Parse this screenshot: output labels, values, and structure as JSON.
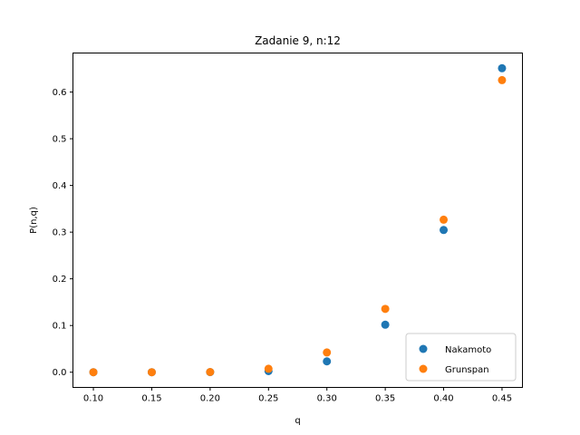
{
  "chart_data": {
    "type": "scatter",
    "title": "Zadanie 9, n:12",
    "xlabel": "q",
    "ylabel": "P(n,q)",
    "xlim": [
      0.0825,
      0.4675
    ],
    "ylim": [
      -0.0326,
      0.6836
    ],
    "xticks": [
      0.1,
      0.15,
      0.2,
      0.25,
      0.3,
      0.35,
      0.4,
      0.45
    ],
    "xtick_labels": [
      "0.10",
      "0.15",
      "0.20",
      "0.25",
      "0.30",
      "0.35",
      "0.40",
      "0.45"
    ],
    "yticks": [
      0.0,
      0.1,
      0.2,
      0.3,
      0.4,
      0.5,
      0.6
    ],
    "ytick_labels": [
      "0.0",
      "0.1",
      "0.2",
      "0.3",
      "0.4",
      "0.5",
      "0.6"
    ],
    "grid": false,
    "legend_position": "lower-right",
    "x": [
      0.1,
      0.15,
      0.2,
      0.25,
      0.3,
      0.35,
      0.4,
      0.45
    ],
    "series": [
      {
        "name": "Nakamoto",
        "color": "#1f77b4",
        "values": [
          0.0,
          0.0,
          0.0002,
          0.0024,
          0.0232,
          0.1017,
          0.3046,
          0.651
        ]
      },
      {
        "name": "Grunspan",
        "color": "#ff7f0e",
        "values": [
          0.0,
          0.0,
          0.0004,
          0.0074,
          0.0423,
          0.1356,
          0.3266,
          0.6256
        ]
      }
    ]
  }
}
